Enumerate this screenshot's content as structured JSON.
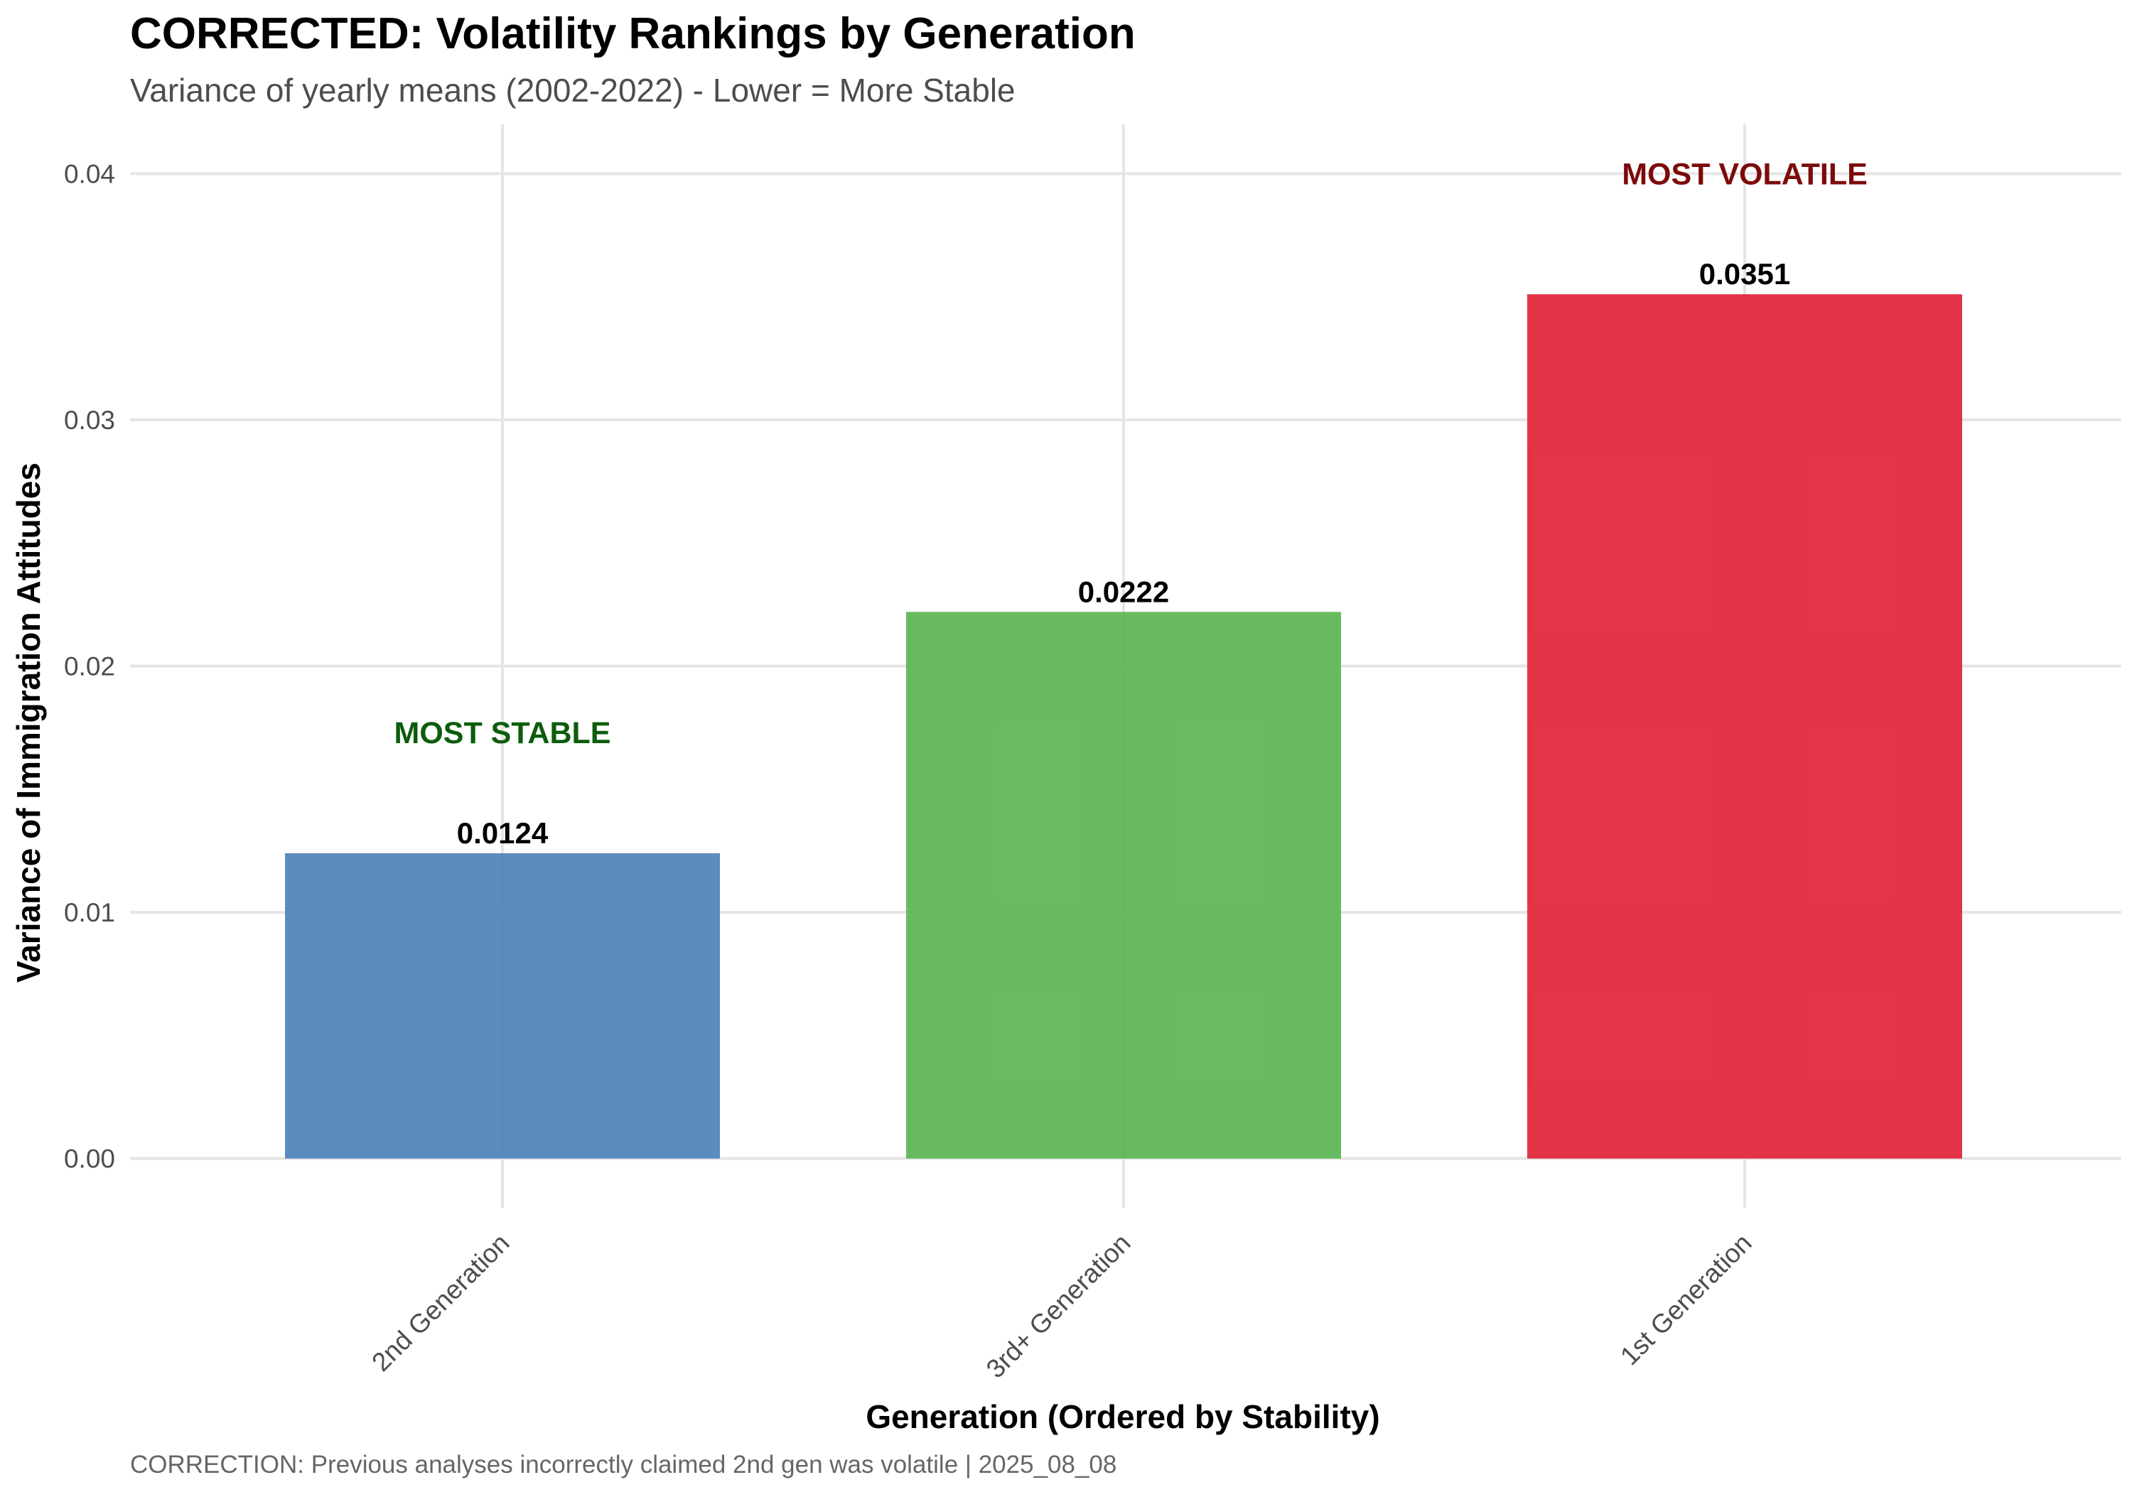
{
  "chart_data": {
    "type": "bar",
    "title": "CORRECTED: Volatility Rankings by Generation",
    "subtitle": "Variance of yearly means (2002-2022) - Lower = More Stable",
    "xlabel": "Generation (Ordered by Stability)",
    "ylabel": "Variance of Immigration Attitudes",
    "caption": "CORRECTION: Previous analyses incorrectly claimed 2nd gen was volatile | 2025_08_08",
    "categories": [
      "2nd Generation",
      "3rd+ Generation",
      "1st Generation"
    ],
    "values": [
      0.0124,
      0.0222,
      0.0351
    ],
    "value_labels": [
      "0.0124",
      "0.0222",
      "0.0351"
    ],
    "colors": [
      "#4a7fb8",
      "#58b24f",
      "#e01e33"
    ],
    "ylim": [
      -0.002,
      0.042
    ],
    "yticks": [
      0,
      0.01,
      0.02,
      0.03,
      0.04
    ],
    "ytick_labels": [
      "0.00",
      "0.01",
      "0.02",
      "0.03",
      "0.04"
    ],
    "grid": true,
    "legend": "none",
    "annotations": [
      {
        "text": "MOST STABLE",
        "category": "2nd Generation",
        "y": 0.0173,
        "color": "#0d5c0d"
      },
      {
        "text": "MOST VOLATILE",
        "category": "1st Generation",
        "y": 0.04,
        "color": "#7d0a0a"
      }
    ]
  }
}
